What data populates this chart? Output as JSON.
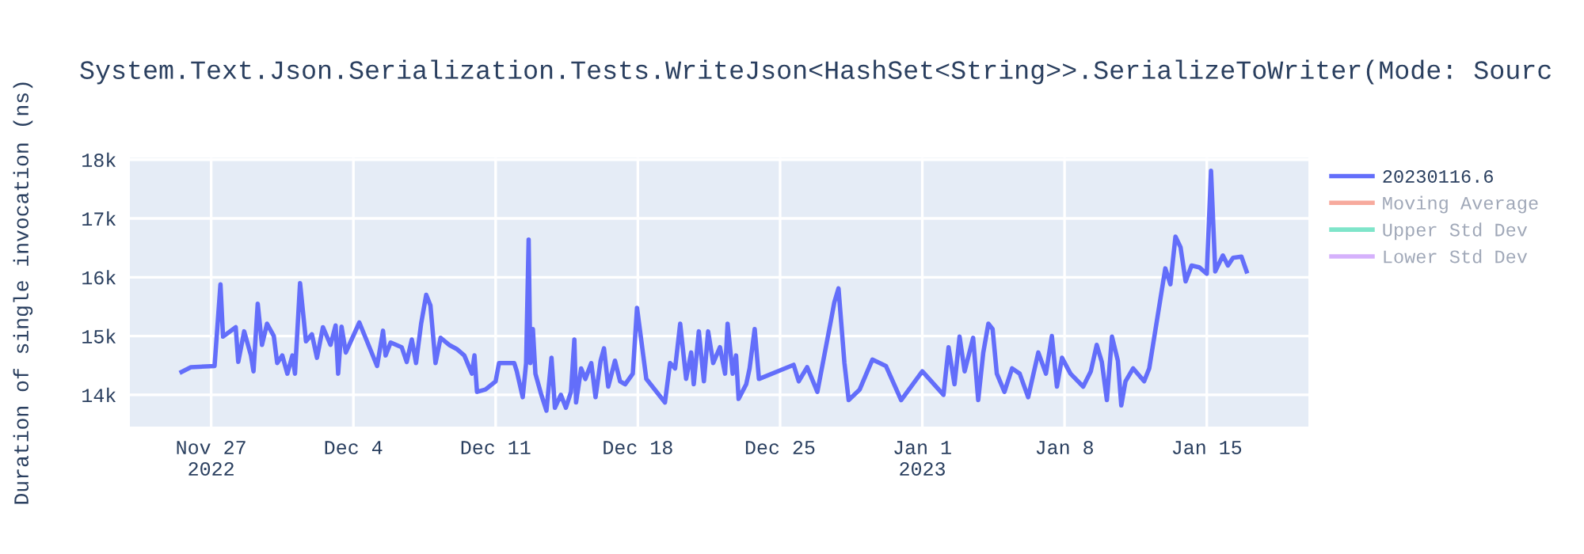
{
  "chart_data": {
    "type": "line",
    "title": "System.Text.Json.Serialization.Tests.WriteJson<HashSet<String>>.SerializeToWriter(Mode: Sourc",
    "ylabel": "Duration of single invocation (ns)",
    "x": [
      "2022-11-25T13:00",
      "2022-11-26T00:00",
      "2022-11-27T04:00",
      "2022-11-27T11:00",
      "2022-11-27T14:00",
      "2022-11-28T05:00",
      "2022-11-28T08:00",
      "2022-11-28T15:00",
      "2022-11-28T23:00",
      "2022-11-29T02:00",
      "2022-11-29T07:00",
      "2022-11-29T12:00",
      "2022-11-29T18:00",
      "2022-11-30T02:00",
      "2022-11-30T06:00",
      "2022-11-30T12:00",
      "2022-11-30T18:00",
      "2022-12-01T00:00",
      "2022-12-01T03:00",
      "2022-12-01T09:00",
      "2022-12-01T16:00",
      "2022-12-01T23:00",
      "2022-12-02T05:00",
      "2022-12-02T12:00",
      "2022-12-02T21:00",
      "2022-12-03T03:00",
      "2022-12-03T06:00",
      "2022-12-03T10:00",
      "2022-12-03T15:00",
      "2022-12-04T07:00",
      "2022-12-05T04:00",
      "2022-12-05T11:00",
      "2022-12-05T14:00",
      "2022-12-05T20:00",
      "2022-12-06T09:00",
      "2022-12-06T15:00",
      "2022-12-06T21:00",
      "2022-12-07T02:00",
      "2022-12-07T08:00",
      "2022-12-07T14:00",
      "2022-12-07T19:00",
      "2022-12-08T01:00",
      "2022-12-08T07:00",
      "2022-12-08T17:00",
      "2022-12-09T02:00",
      "2022-12-09T11:00",
      "2022-12-09T20:00",
      "2022-12-09T23:00",
      "2022-12-10T02:00",
      "2022-12-10T12:00",
      "2022-12-11T00:00",
      "2022-12-11T04:00",
      "2022-12-11T22:00",
      "2022-12-12T01:00",
      "2022-12-12T08:00",
      "2022-12-12T12:00",
      "2022-12-12T15:00",
      "2022-12-12T17:00",
      "2022-12-12T20:00",
      "2022-12-12T23:00",
      "2022-12-13T06:00",
      "2022-12-13T12:00",
      "2022-12-13T18:00",
      "2022-12-13T22:00",
      "2022-12-14T05:00",
      "2022-12-14T11:00",
      "2022-12-14T17:00",
      "2022-12-14T21:00",
      "2022-12-14T23:00",
      "2022-12-15T05:00",
      "2022-12-15T10:00",
      "2022-12-15T17:00",
      "2022-12-15T22:00",
      "2022-12-16T04:00",
      "2022-12-16T08:00",
      "2022-12-16T13:00",
      "2022-12-16T21:00",
      "2022-12-17T03:00",
      "2022-12-17T09:00",
      "2022-12-17T18:00",
      "2022-12-17T23:00",
      "2022-12-18T10:00",
      "2022-12-19T08:00",
      "2022-12-19T14:00",
      "2022-12-19T20:00",
      "2022-12-20T02:00",
      "2022-12-20T09:00",
      "2022-12-20T15:00",
      "2022-12-20T18:00",
      "2022-12-21T00:00",
      "2022-12-21T06:00",
      "2022-12-21T11:00",
      "2022-12-21T17:00",
      "2022-12-22T01:00",
      "2022-12-22T07:00",
      "2022-12-22T10:00",
      "2022-12-22T16:00",
      "2022-12-22T20:00",
      "2022-12-22T23:00",
      "2022-12-23T08:00",
      "2022-12-23T12:00",
      "2022-12-23T18:00",
      "2022-12-23T23:00",
      "2022-12-25T16:00",
      "2022-12-25T22:00",
      "2022-12-26T08:00",
      "2022-12-26T20:00",
      "2022-12-27T12:00",
      "2022-12-27T16:00",
      "2022-12-27T21:00",
      "2022-12-28T04:00",
      "2022-12-28T09:00",
      "2022-12-28T22:00",
      "2022-12-29T13:00",
      "2022-12-30T05:00",
      "2022-12-30T23:00",
      "2023-01-01T00:00",
      "2023-01-02T01:00",
      "2023-01-02T07:00",
      "2023-01-02T14:00",
      "2023-01-02T20:00",
      "2023-01-03T02:00",
      "2023-01-03T12:00",
      "2023-01-03T18:00",
      "2023-01-04T00:00",
      "2023-01-04T06:00",
      "2023-01-04T11:00",
      "2023-01-04T16:00",
      "2023-01-05T01:00",
      "2023-01-05T10:00",
      "2023-01-05T19:00",
      "2023-01-06T05:00",
      "2023-01-06T17:00",
      "2023-01-07T02:00",
      "2023-01-07T09:00",
      "2023-01-07T15:00",
      "2023-01-07T21:00",
      "2023-01-08T07:00",
      "2023-01-08T22:00",
      "2023-01-09T07:00",
      "2023-01-09T14:00",
      "2023-01-09T20:00",
      "2023-01-10T02:00",
      "2023-01-10T08:00",
      "2023-01-10T15:00",
      "2023-01-10T19:00",
      "2023-01-11T00:00",
      "2023-01-11T09:00",
      "2023-01-11T22:00",
      "2023-01-12T04:00",
      "2023-01-12T23:00",
      "2023-01-13T05:00",
      "2023-01-13T11:00",
      "2023-01-13T17:00",
      "2023-01-13T23:00",
      "2023-01-14T06:00",
      "2023-01-14T15:00",
      "2023-01-15T00:00",
      "2023-01-15T05:00",
      "2023-01-15T10:00",
      "2023-01-15T19:00",
      "2023-01-16T01:00",
      "2023-01-16T07:00",
      "2023-01-16T17:00",
      "2023-01-16T23:00"
    ],
    "series": [
      {
        "name": "20230116.6",
        "color": "#636efa",
        "values": [
          14390,
          14470,
          14490,
          15880,
          14990,
          15150,
          14560,
          15080,
          14670,
          14400,
          15550,
          14850,
          15210,
          15000,
          14540,
          14670,
          14360,
          14670,
          14360,
          15900,
          14910,
          15030,
          14630,
          15150,
          14850,
          15180,
          14360,
          15160,
          14720,
          15230,
          14490,
          15090,
          14670,
          14890,
          14810,
          14560,
          14940,
          14540,
          15210,
          15700,
          15520,
          14540,
          14970,
          14850,
          14780,
          14670,
          14360,
          14670,
          14050,
          14090,
          14230,
          14540,
          14540,
          14400,
          13960,
          14540,
          16640,
          14540,
          15120,
          14360,
          14000,
          13730,
          14630,
          13780,
          14000,
          13780,
          14050,
          14940,
          13870,
          14450,
          14270,
          14540,
          13960,
          14580,
          14790,
          14140,
          14580,
          14230,
          14180,
          14360,
          15480,
          14270,
          13870,
          14540,
          14450,
          15210,
          14270,
          14720,
          14180,
          15080,
          14230,
          15080,
          14540,
          14810,
          14360,
          15210,
          14360,
          14670,
          13930,
          14180,
          14450,
          15120,
          14270,
          14510,
          14230,
          14470,
          14050,
          15260,
          15570,
          15810,
          14540,
          13910,
          14090,
          14600,
          14490,
          13910,
          14400,
          14000,
          14810,
          14180,
          14990,
          14400,
          14970,
          13910,
          14720,
          15210,
          15120,
          14360,
          14050,
          14450,
          14360,
          13960,
          14720,
          14360,
          15000,
          14140,
          14630,
          14360,
          14140,
          14400,
          14850,
          14560,
          13910,
          14990,
          14580,
          13820,
          14230,
          14450,
          14230,
          14450,
          16150,
          15880,
          16690,
          16510,
          15930,
          16200,
          16170,
          16060,
          17810,
          16100,
          16370,
          16200,
          16330,
          16350,
          16100
        ]
      },
      {
        "name": "Moving Average",
        "color": "#ef553b",
        "values": [
          null,
          null,
          null,
          null,
          null,
          null,
          null,
          null,
          null,
          null,
          null,
          null,
          null,
          null,
          null,
          null,
          null,
          null,
          null,
          null,
          null,
          null,
          null,
          null,
          null,
          null,
          null,
          null,
          null,
          null,
          null,
          null,
          null,
          null,
          null,
          null,
          null,
          null,
          null,
          null,
          null,
          null,
          null,
          null,
          null,
          null,
          null,
          null,
          null,
          null,
          null,
          null,
          null,
          null,
          null,
          null,
          null,
          null,
          null,
          null,
          null,
          null,
          null,
          null,
          null,
          null,
          null,
          null,
          null,
          null,
          null,
          null,
          null,
          null,
          null,
          null,
          null,
          null,
          null,
          null,
          null,
          null,
          null,
          null,
          null,
          null,
          null,
          null,
          null,
          null,
          null,
          null,
          null,
          null,
          null,
          null,
          null,
          null,
          null,
          null,
          null,
          null,
          null,
          null,
          null,
          null,
          null,
          null,
          null,
          null,
          null,
          null,
          null,
          null,
          null,
          null,
          null,
          null,
          null,
          null,
          null,
          null,
          null,
          null,
          null,
          null,
          null,
          null,
          null,
          null,
          null,
          null,
          null,
          null,
          null,
          null,
          null,
          null,
          null,
          null,
          null,
          null,
          null,
          null,
          null,
          null,
          null,
          null,
          null,
          null,
          null,
          null,
          null,
          null,
          null,
          null,
          null,
          null,
          null,
          null,
          null,
          null,
          null,
          null,
          null
        ]
      },
      {
        "name": "Upper Std Dev",
        "color": "#00cc96",
        "values": [
          null,
          null,
          null,
          null,
          null,
          null,
          null,
          null,
          null,
          null,
          null,
          null,
          null,
          null,
          null,
          null,
          null,
          null,
          null,
          null,
          null,
          null,
          null,
          null,
          null,
          null,
          null,
          null,
          null,
          null,
          null,
          null,
          null,
          null,
          null,
          null,
          null,
          null,
          null,
          null,
          null,
          null,
          null,
          null,
          null,
          null,
          null,
          null,
          null,
          null,
          null,
          null,
          null,
          null,
          null,
          null,
          null,
          null,
          null,
          null,
          null,
          null,
          null,
          null,
          null,
          null,
          null,
          null,
          null,
          null,
          null,
          null,
          null,
          null,
          null,
          null,
          null,
          null,
          null,
          null,
          null,
          null,
          null,
          null,
          null,
          null,
          null,
          null,
          null,
          null,
          null,
          null,
          null,
          null,
          null,
          null,
          null,
          null,
          null,
          null,
          null,
          null,
          null,
          null,
          null,
          null,
          null,
          null,
          null,
          null,
          null,
          null,
          null,
          null,
          null,
          null,
          null,
          null,
          null,
          null,
          null,
          null,
          null,
          null,
          null,
          null,
          null,
          null,
          null,
          null,
          null,
          null,
          null,
          null,
          null,
          null,
          null,
          null,
          null,
          null,
          null,
          null,
          null,
          null,
          null,
          null,
          null,
          null,
          null,
          null,
          null,
          null,
          null,
          null,
          null,
          null,
          null,
          null,
          null,
          null,
          null,
          null,
          null,
          null,
          null
        ]
      },
      {
        "name": "Lower Std Dev",
        "color": "#ab63fa",
        "values": [
          null,
          null,
          null,
          null,
          null,
          null,
          null,
          null,
          null,
          null,
          null,
          null,
          null,
          null,
          null,
          null,
          null,
          null,
          null,
          null,
          null,
          null,
          null,
          null,
          null,
          null,
          null,
          null,
          null,
          null,
          null,
          null,
          null,
          null,
          null,
          null,
          null,
          null,
          null,
          null,
          null,
          null,
          null,
          null,
          null,
          null,
          null,
          null,
          null,
          null,
          null,
          null,
          null,
          null,
          null,
          null,
          null,
          null,
          null,
          null,
          null,
          null,
          null,
          null,
          null,
          null,
          null,
          null,
          null,
          null,
          null,
          null,
          null,
          null,
          null,
          null,
          null,
          null,
          null,
          null,
          null,
          null,
          null,
          null,
          null,
          null,
          null,
          null,
          null,
          null,
          null,
          null,
          null,
          null,
          null,
          null,
          null,
          null,
          null,
          null,
          null,
          null,
          null,
          null,
          null,
          null,
          null,
          null,
          null,
          null,
          null,
          null,
          null,
          null,
          null,
          null,
          null,
          null,
          null,
          null,
          null,
          null,
          null,
          null,
          null,
          null,
          null,
          null,
          null,
          null,
          null,
          null,
          null,
          null,
          null,
          null,
          null,
          null,
          null,
          null,
          null,
          null,
          null,
          null,
          null,
          null,
          null,
          null,
          null,
          null,
          null,
          null,
          null,
          null,
          null,
          null,
          null,
          null,
          null,
          null,
          null,
          null,
          null,
          null,
          null
        ]
      }
    ],
    "xlim": [
      "2022-11-23",
      "2023-01-20"
    ],
    "xticks": [
      {
        "value": "2022-11-27",
        "label": "Nov 27\n2022"
      },
      {
        "value": "2022-12-04",
        "label": "Dec 4"
      },
      {
        "value": "2022-12-11",
        "label": "Dec 11"
      },
      {
        "value": "2022-12-18",
        "label": "Dec 18"
      },
      {
        "value": "2022-12-25",
        "label": "Dec 25"
      },
      {
        "value": "2023-01-01",
        "label": "Jan 1\n2023"
      },
      {
        "value": "2023-01-08",
        "label": "Jan 8"
      },
      {
        "value": "2023-01-15",
        "label": "Jan 15"
      }
    ],
    "ylim": [
      13460,
      18030
    ],
    "yticks": [
      {
        "value": 14000,
        "label": "14k"
      },
      {
        "value": 15000,
        "label": "15k"
      },
      {
        "value": 16000,
        "label": "16k"
      },
      {
        "value": 17000,
        "label": "17k"
      },
      {
        "value": 18000,
        "label": "18k"
      }
    ],
    "grid": true,
    "legend": "top right",
    "line_style": "solid",
    "marker": "none"
  }
}
